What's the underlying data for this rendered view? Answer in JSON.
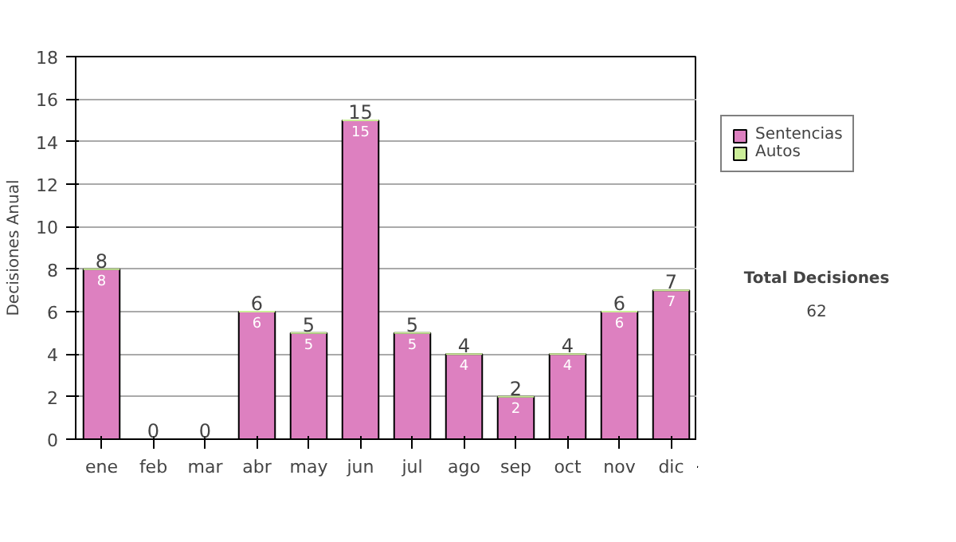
{
  "chart_data": {
    "type": "bar",
    "stacked": true,
    "ylabel": "Decisiones Anual",
    "categories": [
      "ene",
      "feb",
      "mar",
      "abr",
      "may",
      "jun",
      "jul",
      "ago",
      "sep",
      "oct",
      "nov",
      "dic"
    ],
    "series": [
      {
        "name": "Sentencias",
        "color": "#dd80c0",
        "values": [
          8,
          0,
          0,
          6,
          5,
          15,
          5,
          4,
          2,
          4,
          6,
          7
        ],
        "value_labels": [
          "8",
          null,
          null,
          "6",
          "5",
          "15",
          "5",
          "4",
          "2",
          "4",
          "6",
          "7"
        ]
      },
      {
        "name": "Autos",
        "color": "#ccee99",
        "values": [
          0,
          0,
          0,
          0,
          0,
          0,
          0,
          0,
          0,
          0,
          0,
          0
        ]
      }
    ],
    "totals": [
      "8",
      "0",
      "0",
      "6",
      "5",
      "15",
      "5",
      "4",
      "2",
      "4",
      "6",
      "7"
    ],
    "ylim": [
      0,
      18
    ],
    "yticks": [
      0,
      2,
      4,
      6,
      8,
      10,
      12,
      14,
      16,
      18
    ],
    "grid": "y",
    "legend": "right",
    "annotations": [
      "Total Decisiones",
      "62"
    ]
  }
}
